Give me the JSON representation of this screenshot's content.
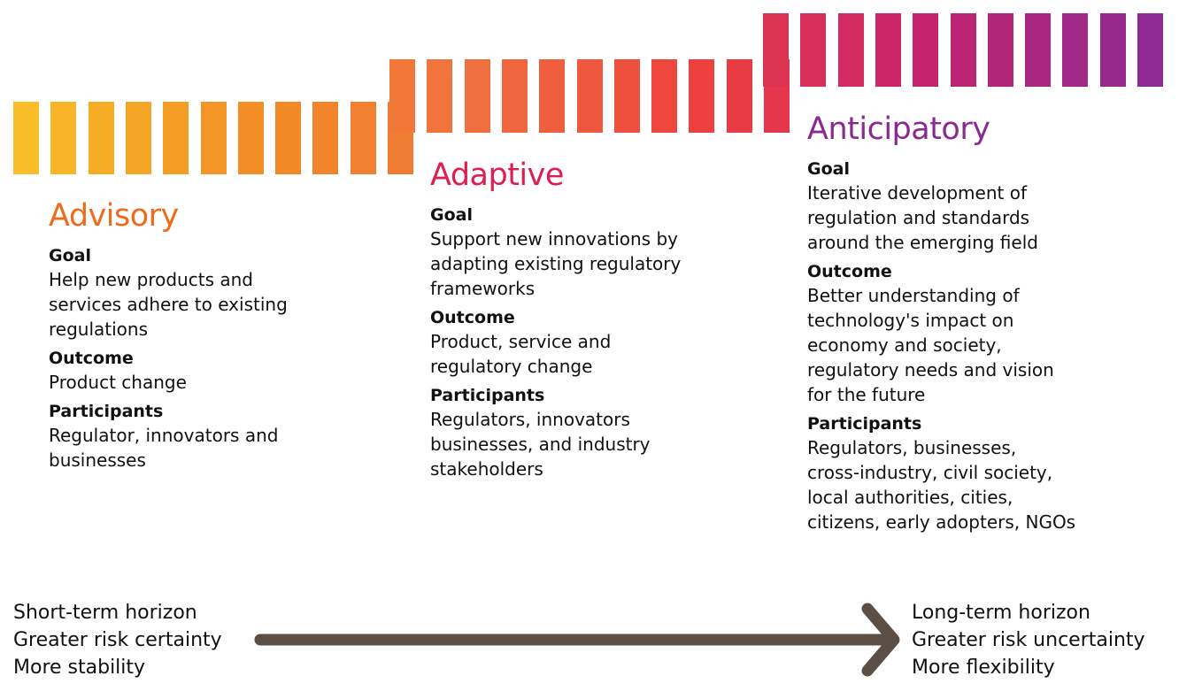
{
  "colors": {
    "advisory": "#ee6b1c",
    "adaptive": "#dc1f4f",
    "anticipatory": "#8a2a8e",
    "arrow": "#5b4f45",
    "bar_gradient": [
      "#f8bd27",
      "#f28b25",
      "#f0713f",
      "#ee3e3e",
      "#c8246c",
      "#8e2a92"
    ]
  },
  "stages": [
    {
      "id": "advisory",
      "title": "Advisory",
      "sections": [
        {
          "heading": "Goal",
          "text": "Help new products and\nservices adhere to existing\nregulations"
        },
        {
          "heading": "Outcome",
          "text": "Product change"
        },
        {
          "heading": "Participants",
          "text": "Regulator, innovators and\nbusinesses"
        }
      ]
    },
    {
      "id": "adaptive",
      "title": "Adaptive",
      "sections": [
        {
          "heading": "Goal",
          "text": "Support new innovations by\nadapting existing regulatory\nframeworks"
        },
        {
          "heading": "Outcome",
          "text": "Product, service and\nregulatory change"
        },
        {
          "heading": "Participants",
          "text": "Regulators, innovators\nbusinesses, and industry\nstakeholders"
        }
      ]
    },
    {
      "id": "anticipatory",
      "title": "Anticipatory",
      "sections": [
        {
          "heading": "Goal",
          "text": "Iterative development of\nregulation and standards\naround the emerging field"
        },
        {
          "heading": "Outcome",
          "text": "Better understanding of\ntechnology's impact on\neconomy and society,\nregulatory needs and vision\nfor the future"
        },
        {
          "heading": "Participants",
          "text": "Regulators, businesses,\ncross-industry, civil society,\nlocal authorities, cities,\ncitizens, early adopters, NGOs"
        }
      ]
    }
  ],
  "horizon": {
    "left": "Short-term horizon\nGreater risk certainty\nMore stability",
    "right": "Long-term horizon\nGreater risk uncertainty\nMore flexibility"
  }
}
